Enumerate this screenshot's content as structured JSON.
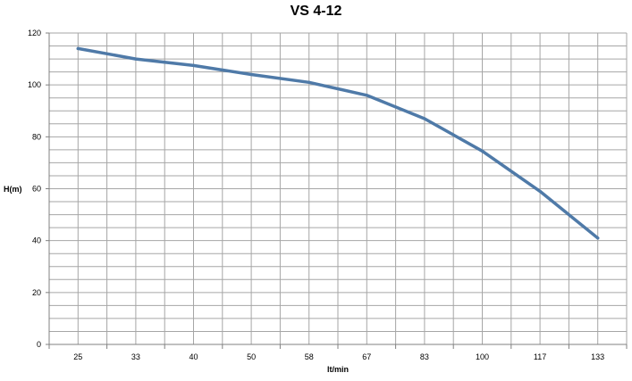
{
  "chart_data": {
    "type": "line",
    "title": "VS 4-12",
    "xlabel": "lt/min",
    "ylabel": "H(m)",
    "categories": [
      "25",
      "33",
      "40",
      "50",
      "58",
      "67",
      "83",
      "100",
      "117",
      "133"
    ],
    "series": [
      {
        "values": [
          114,
          110,
          107.5,
          104,
          101,
          96,
          87,
          74.5,
          59,
          41
        ]
      }
    ],
    "ylim": [
      0,
      120
    ],
    "yticks": [
      0,
      20,
      40,
      60,
      80,
      100,
      120
    ],
    "grid": true,
    "colors": {
      "line": "#4f7aa8",
      "grid": "#a6a6a6",
      "axis": "#808080"
    }
  }
}
